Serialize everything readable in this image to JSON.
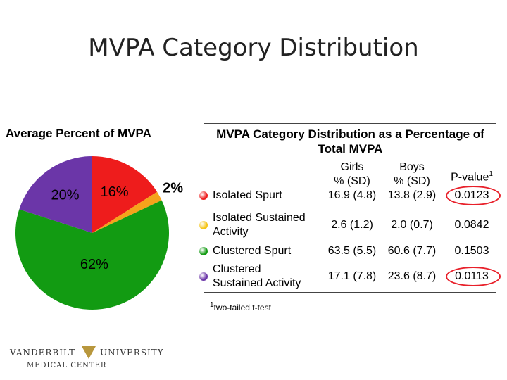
{
  "title": "MVPA Category Distribution",
  "chart_data": {
    "type": "pie",
    "title": "Average Percent of MVPA",
    "categories": [
      "Isolated Spurt",
      "Isolated Sustained Activity",
      "Clustered Spurt",
      "Clustered Sustained Activity"
    ],
    "values": [
      16,
      2,
      62,
      20
    ],
    "value_labels": [
      "16%",
      "2%",
      "62%",
      "20%"
    ],
    "colors": [
      "#ee1c1c",
      "#f5a31b",
      "#129b12",
      "#6b36a8"
    ]
  },
  "table": {
    "title": "MVPA Category Distribution as a Percentage of Total MVPA",
    "headers": [
      [
        "Girls",
        "% (SD)"
      ],
      [
        "Boys",
        "% (SD)"
      ],
      [
        "P-value"
      ]
    ],
    "header_note": "1",
    "rows": [
      {
        "label": [
          "Isolated Spurt"
        ],
        "cells": [
          "16.9 (4.8)",
          "13.8 (2.9)",
          "0.0123"
        ],
        "color": "#ee1c1c",
        "highlight": true
      },
      {
        "label": [
          "Isolated Sustained",
          "Activity"
        ],
        "cells": [
          "2.6 (1.2)",
          "2.0 (0.7)",
          "0.0842"
        ],
        "color": "#f5c518",
        "highlight": false
      },
      {
        "label": [
          "Clustered Spurt"
        ],
        "cells": [
          "63.5 (5.5)",
          "60.6 (7.7)",
          "0.1503"
        ],
        "color": "#129b12",
        "highlight": false
      },
      {
        "label": [
          "Clustered",
          "Sustained Activity"
        ],
        "cells": [
          "17.1 (7.8)",
          "23.6 (8.7)",
          "0.0113"
        ],
        "color": "#6b36a8",
        "highlight": true
      }
    ],
    "footnote": {
      "mark": "1",
      "text": "two-tailed t-test"
    }
  },
  "logo": {
    "name": "VANDERBILT",
    "name2": "UNIVERSITY",
    "sub": "MEDICAL CENTER"
  }
}
